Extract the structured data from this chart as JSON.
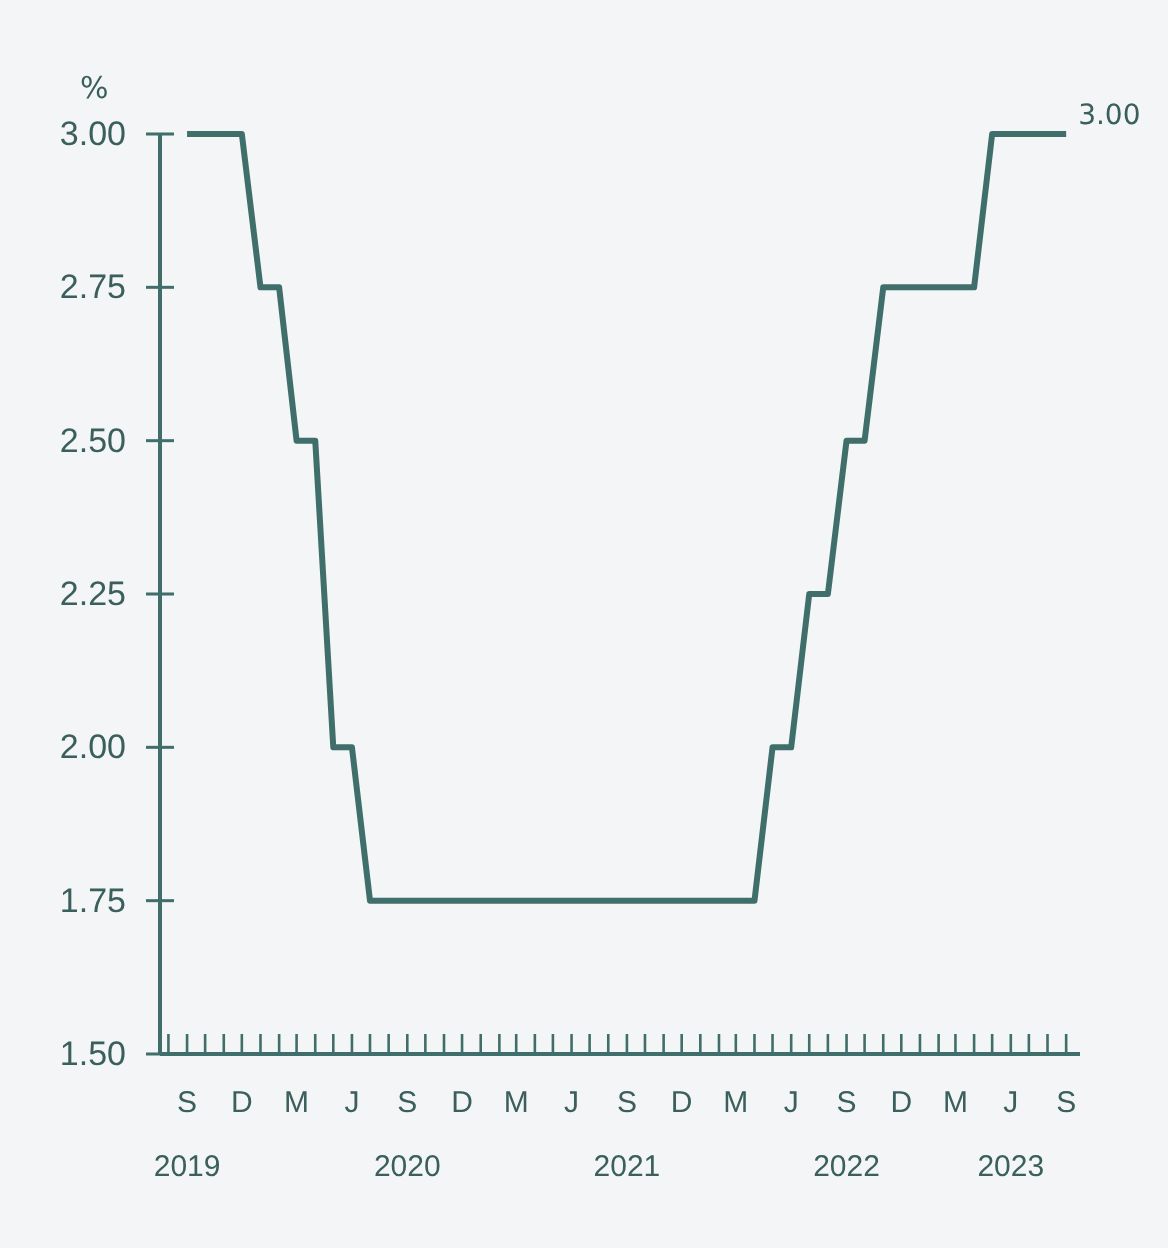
{
  "chart_data": {
    "type": "line",
    "ylabel": "%",
    "x": [
      "2019-09",
      "2019-12",
      "2020-01",
      "2020-02",
      "2020-03",
      "2020-04",
      "2020-05",
      "2020-06",
      "2020-07",
      "2022-04",
      "2022-05",
      "2022-06",
      "2022-07",
      "2022-08",
      "2022-09",
      "2022-10",
      "2022-11",
      "2023-04",
      "2023-05",
      "2023-09"
    ],
    "series": [
      {
        "color": "#3f6e6b",
        "values": [
          3.0,
          3.0,
          2.75,
          2.75,
          2.5,
          2.5,
          2.0,
          2.0,
          1.75,
          1.75,
          2.0,
          2.0,
          2.25,
          2.25,
          2.5,
          2.5,
          2.75,
          2.75,
          3.0,
          3.0
        ]
      }
    ],
    "xlim": [
      "2019-07-18",
      "2023-09-24"
    ],
    "ylim": [
      1.5,
      3.0
    ],
    "yticks": [
      {
        "value": 1.5,
        "label": "1.50"
      },
      {
        "value": 1.75,
        "label": "1.75"
      },
      {
        "value": 2.0,
        "label": "2.00"
      },
      {
        "value": 2.25,
        "label": "2.25"
      },
      {
        "value": 2.5,
        "label": "2.50"
      },
      {
        "value": 2.75,
        "label": "2.75"
      },
      {
        "value": 3.0,
        "label": "3.00"
      }
    ],
    "xticks": [
      {
        "value": "2019-08",
        "label": null
      },
      {
        "value": "2019-09",
        "label": "S\n2019"
      },
      {
        "value": "2019-10",
        "label": null
      },
      {
        "value": "2019-11",
        "label": null
      },
      {
        "value": "2019-12",
        "label": "D"
      },
      {
        "value": "2020-01",
        "label": null
      },
      {
        "value": "2020-02",
        "label": null
      },
      {
        "value": "2020-03",
        "label": "M"
      },
      {
        "value": "2020-04",
        "label": null
      },
      {
        "value": "2020-05",
        "label": null
      },
      {
        "value": "2020-06",
        "label": "J"
      },
      {
        "value": "2020-07",
        "label": null
      },
      {
        "value": "2020-08",
        "label": null
      },
      {
        "value": "2020-09",
        "label": "S\n2020"
      },
      {
        "value": "2020-10",
        "label": null
      },
      {
        "value": "2020-11",
        "label": null
      },
      {
        "value": "2020-12",
        "label": "D"
      },
      {
        "value": "2021-01",
        "label": null
      },
      {
        "value": "2021-02",
        "label": null
      },
      {
        "value": "2021-03",
        "label": "M"
      },
      {
        "value": "2021-04",
        "label": null
      },
      {
        "value": "2021-05",
        "label": null
      },
      {
        "value": "2021-06",
        "label": "J"
      },
      {
        "value": "2021-07",
        "label": null
      },
      {
        "value": "2021-08",
        "label": null
      },
      {
        "value": "2021-09",
        "label": "S\n2021"
      },
      {
        "value": "2021-10",
        "label": null
      },
      {
        "value": "2021-11",
        "label": null
      },
      {
        "value": "2021-12",
        "label": "D"
      },
      {
        "value": "2022-01",
        "label": null
      },
      {
        "value": "2022-02",
        "label": null
      },
      {
        "value": "2022-03",
        "label": "M"
      },
      {
        "value": "2022-04",
        "label": null
      },
      {
        "value": "2022-05",
        "label": null
      },
      {
        "value": "2022-06",
        "label": "J"
      },
      {
        "value": "2022-07",
        "label": null
      },
      {
        "value": "2022-08",
        "label": null
      },
      {
        "value": "2022-09",
        "label": "S\n2022"
      },
      {
        "value": "2022-10",
        "label": null
      },
      {
        "value": "2022-11",
        "label": null
      },
      {
        "value": "2022-12",
        "label": "D"
      },
      {
        "value": "2023-01",
        "label": null
      },
      {
        "value": "2023-02",
        "label": null
      },
      {
        "value": "2023-03",
        "label": "M"
      },
      {
        "value": "2023-04",
        "label": null
      },
      {
        "value": "2023-05",
        "label": null
      },
      {
        "value": "2023-06",
        "label": "J\n2023"
      },
      {
        "value": "2023-07",
        "label": null
      },
      {
        "value": "2023-08",
        "label": null
      },
      {
        "value": "2023-09",
        "label": "S"
      }
    ],
    "annotations": [
      {
        "text": "3.00",
        "x": "2023-09",
        "y": 3.0
      }
    ],
    "marker": "none",
    "line_style": "solid"
  }
}
